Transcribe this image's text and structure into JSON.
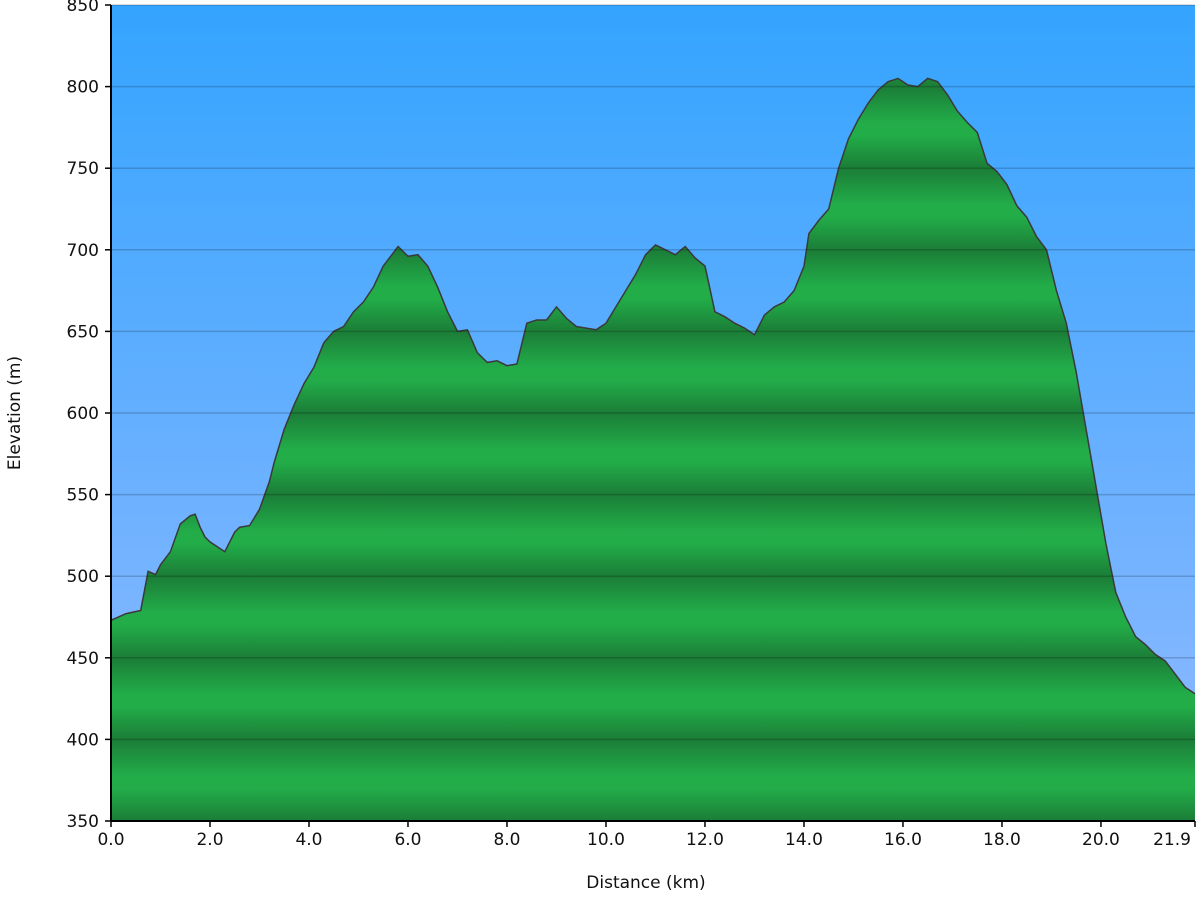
{
  "chart_data": {
    "type": "area",
    "xlabel": "Distance   (km)",
    "ylabel": "Elevation (m)",
    "color": "#22ad49",
    "grid": true,
    "xlim": [
      0,
      21.9
    ],
    "ylim": [
      350,
      850
    ],
    "yticks": [
      350,
      400,
      450,
      500,
      550,
      600,
      650,
      700,
      750,
      800,
      850
    ],
    "xticks": [
      {
        "value": 0,
        "label": "0.0"
      },
      {
        "value": 2,
        "label": "2.0"
      },
      {
        "value": 4,
        "label": "4.0"
      },
      {
        "value": 6,
        "label": "6.0"
      },
      {
        "value": 8,
        "label": "8.0"
      },
      {
        "value": 10,
        "label": "10.0"
      },
      {
        "value": 12,
        "label": "12.0"
      },
      {
        "value": 14,
        "label": "14.0"
      },
      {
        "value": 16,
        "label": "16.0"
      },
      {
        "value": 18,
        "label": "18.0"
      },
      {
        "value": 20,
        "label": "20.0"
      },
      {
        "value": 21.9,
        "label": "21.9"
      }
    ],
    "x": [
      0,
      0.3,
      0.6,
      0.75,
      0.9,
      1.0,
      1.2,
      1.4,
      1.6,
      1.7,
      1.8,
      1.9,
      2.0,
      2.2,
      2.3,
      2.5,
      2.6,
      2.8,
      3.0,
      3.2,
      3.3,
      3.5,
      3.7,
      3.9,
      4.1,
      4.3,
      4.5,
      4.7,
      4.9,
      5.1,
      5.3,
      5.5,
      5.7,
      5.8,
      6.0,
      6.2,
      6.4,
      6.6,
      6.8,
      7.0,
      7.2,
      7.4,
      7.6,
      7.8,
      8.0,
      8.2,
      8.4,
      8.6,
      8.8,
      9.0,
      9.2,
      9.4,
      9.6,
      9.8,
      10.0,
      10.2,
      10.4,
      10.6,
      10.8,
      11.0,
      11.2,
      11.4,
      11.6,
      11.8,
      12.0,
      12.2,
      12.4,
      12.6,
      12.8,
      13.0,
      13.2,
      13.4,
      13.6,
      13.8,
      14.0,
      14.1,
      14.3,
      14.5,
      14.7,
      14.9,
      15.1,
      15.3,
      15.5,
      15.7,
      15.9,
      16.1,
      16.3,
      16.5,
      16.7,
      16.9,
      17.1,
      17.3,
      17.5,
      17.7,
      17.9,
      18.1,
      18.3,
      18.5,
      18.7,
      18.9,
      19.1,
      19.3,
      19.5,
      19.7,
      19.9,
      20.1,
      20.3,
      20.5,
      20.7,
      20.9,
      21.1,
      21.3,
      21.5,
      21.7,
      21.9
    ],
    "y": [
      473,
      477,
      479,
      503,
      501,
      507,
      515,
      532,
      537,
      538,
      530,
      524,
      521,
      517,
      515,
      527,
      530,
      531,
      541,
      558,
      570,
      590,
      605,
      618,
      628,
      643,
      650,
      653,
      662,
      668,
      677,
      690,
      698,
      702,
      696,
      697,
      690,
      677,
      662,
      650,
      651,
      637,
      631,
      632,
      629,
      630,
      655,
      657,
      657,
      665,
      658,
      653,
      652,
      651,
      655,
      665,
      675,
      685,
      697,
      703,
      700,
      697,
      702,
      695,
      690,
      662,
      659,
      655,
      652,
      648,
      660,
      665,
      668,
      675,
      690,
      710,
      718,
      725,
      750,
      768,
      780,
      790,
      798,
      803,
      805,
      801,
      800,
      805,
      803,
      795,
      785,
      778,
      772,
      753,
      748,
      740,
      727,
      720,
      708,
      700,
      675,
      655,
      625,
      590,
      555,
      520,
      490,
      475,
      463,
      458,
      452,
      448,
      440,
      432,
      428
    ]
  }
}
